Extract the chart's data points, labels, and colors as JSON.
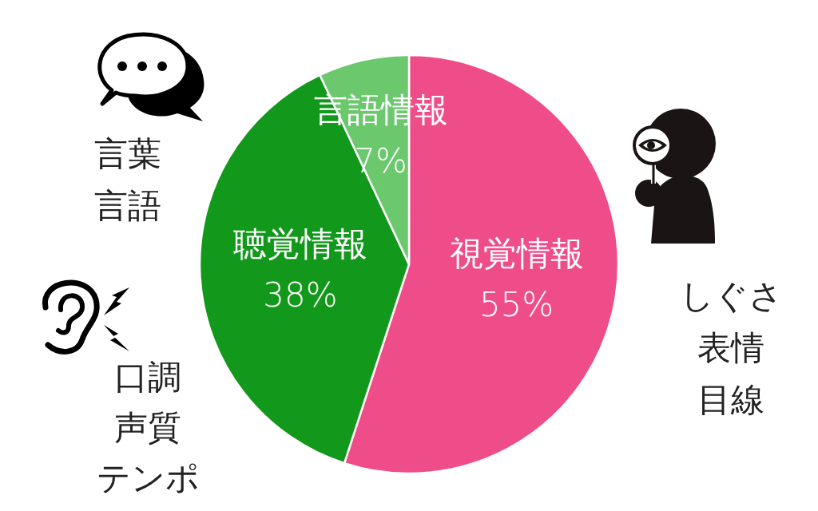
{
  "chart_data": {
    "type": "pie",
    "categories": [
      "視覚情報",
      "聴覚情報",
      "言語情報"
    ],
    "values": [
      55,
      38,
      7
    ],
    "colors": [
      "#ef4d89",
      "#12981a",
      "#6bc86d"
    ],
    "value_labels": [
      "55%",
      "38%",
      "7%"
    ],
    "annotations": [
      "言葉",
      "言語",
      "口調",
      "声質",
      "テンポ",
      "しぐさ",
      "表情",
      "目線"
    ]
  }
}
